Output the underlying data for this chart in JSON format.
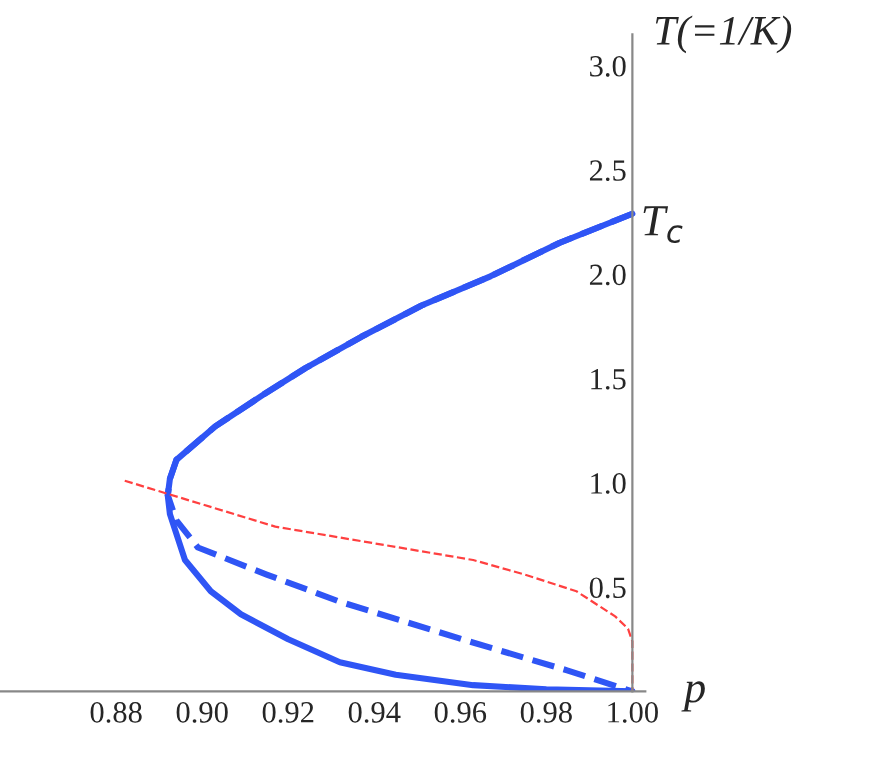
{
  "chart_data": {
    "type": "line",
    "xlabel": "p",
    "ylabel": "T(=1/K)",
    "xlim": [
      0.853,
      1.003
    ],
    "ylim": [
      0,
      3.15
    ],
    "xticks": [
      {
        "value": 0.88,
        "label": "0.88"
      },
      {
        "value": 0.9,
        "label": "0.90"
      },
      {
        "value": 0.92,
        "label": "0.92"
      },
      {
        "value": 0.94,
        "label": "0.94"
      },
      {
        "value": 0.96,
        "label": "0.96"
      },
      {
        "value": 0.98,
        "label": "0.98"
      },
      {
        "value": 1.0,
        "label": "1.00"
      }
    ],
    "yticks": [
      {
        "value": 0.5,
        "label": "0.5"
      },
      {
        "value": 1.0,
        "label": "1.0"
      },
      {
        "value": 1.5,
        "label": "1.5"
      },
      {
        "value": 2.0,
        "label": "2.0"
      },
      {
        "value": 2.5,
        "label": "2.5"
      },
      {
        "value": 3.0,
        "label": "3.0"
      }
    ],
    "grid": false,
    "marker": "none",
    "series": [
      {
        "color": "#2f55f5",
        "line_style": "solid",
        "x": [
          1.0,
          0.983,
          0.967,
          0.951,
          0.937,
          0.924,
          0.914,
          0.903,
          0.894,
          0.8925,
          0.892,
          0.8925,
          0.896,
          0.902,
          0.909,
          0.92,
          0.932,
          0.945,
          0.963,
          0.98,
          1.0
        ],
        "values": [
          2.29,
          2.15,
          1.99,
          1.85,
          1.7,
          1.55,
          1.42,
          1.27,
          1.11,
          1.02,
          0.94,
          0.85,
          0.63,
          0.48,
          0.37,
          0.25,
          0.14,
          0.08,
          0.03,
          0.01,
          0
        ]
      },
      {
        "color": "#2f55f5",
        "line_style": "dashed",
        "x": [
          1.0,
          0.983,
          0.967,
          0.951,
          0.937,
          0.924,
          0.914,
          0.903,
          0.894,
          0.8925,
          0.892,
          0.894,
          0.899,
          0.915,
          0.932,
          0.962,
          0.985,
          1.0
        ],
        "values": [
          2.29,
          2.15,
          1.99,
          1.85,
          1.7,
          1.55,
          1.42,
          1.27,
          1.11,
          1.02,
          0.94,
          0.82,
          0.69,
          0.56,
          0.43,
          0.24,
          0.1,
          0
        ]
      },
      {
        "color": "#ff4040",
        "line_style": "dashed",
        "x": [
          0.882,
          0.917,
          0.94,
          0.963,
          0.975,
          0.987,
          0.996,
          0.999,
          1.0,
          1.0
        ],
        "values": [
          1.01,
          0.79,
          0.71,
          0.63,
          0.56,
          0.48,
          0.36,
          0.3,
          0.24,
          0
        ]
      }
    ],
    "annotations": [
      {
        "text": "T$_{c}$",
        "x": 1.0,
        "y": 2.29
      }
    ]
  }
}
